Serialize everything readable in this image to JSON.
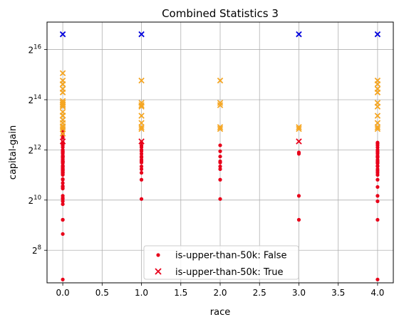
{
  "chart_data": {
    "type": "scatter",
    "title": "Combined Statistics 3",
    "xlabel": "race",
    "ylabel": "capital-gain",
    "y_scale": "log2",
    "grid": true,
    "legend_placement": "lower center",
    "xlim": [
      -0.2,
      4.2
    ],
    "ylim": [
      104,
      140000
    ],
    "x_ticks": [
      0.0,
      0.5,
      1.0,
      1.5,
      2.0,
      2.5,
      3.0,
      3.5,
      4.0
    ],
    "x_tick_labels": [
      "0.0",
      "0.5",
      "1.0",
      "1.5",
      "2.0",
      "2.5",
      "3.0",
      "3.5",
      "4.0"
    ],
    "y_ticks": [
      256,
      1024,
      4096,
      16384,
      65536
    ],
    "y_tick_labels": [
      {
        "base": "2",
        "exp": "8"
      },
      {
        "base": "2",
        "exp": "10"
      },
      {
        "base": "2",
        "exp": "12"
      },
      {
        "base": "2",
        "exp": "14"
      },
      {
        "base": "2",
        "exp": "16"
      }
    ],
    "series": [
      {
        "name": "is-upper-than-50k: False",
        "marker": "circle",
        "points": [
          {
            "x": 0,
            "y": 114
          },
          {
            "x": 0,
            "y": 401
          },
          {
            "x": 0,
            "y": 594
          },
          {
            "x": 0,
            "y": 594
          },
          {
            "x": 0,
            "y": 914
          },
          {
            "x": 0,
            "y": 991
          },
          {
            "x": 0,
            "y": 1055
          },
          {
            "x": 0,
            "y": 1086
          },
          {
            "x": 0,
            "y": 1151
          },
          {
            "x": 0,
            "y": 1409
          },
          {
            "x": 0,
            "y": 1471
          },
          {
            "x": 0,
            "y": 1506
          },
          {
            "x": 0,
            "y": 1639
          },
          {
            "x": 0,
            "y": 1797
          },
          {
            "x": 0,
            "y": 1831
          },
          {
            "x": 0,
            "y": 2050
          },
          {
            "x": 0,
            "y": 2105
          },
          {
            "x": 0,
            "y": 2174
          },
          {
            "x": 0,
            "y": 2176
          },
          {
            "x": 0,
            "y": 2202
          },
          {
            "x": 0,
            "y": 2228
          },
          {
            "x": 0,
            "y": 2290
          },
          {
            "x": 0,
            "y": 2329
          },
          {
            "x": 0,
            "y": 2346
          },
          {
            "x": 0,
            "y": 2354
          },
          {
            "x": 0,
            "y": 2407
          },
          {
            "x": 0,
            "y": 2414
          },
          {
            "x": 0,
            "y": 2463
          },
          {
            "x": 0,
            "y": 2538
          },
          {
            "x": 0,
            "y": 2580
          },
          {
            "x": 0,
            "y": 2597
          },
          {
            "x": 0,
            "y": 2635
          },
          {
            "x": 0,
            "y": 2653
          },
          {
            "x": 0,
            "y": 2829
          },
          {
            "x": 0,
            "y": 2885
          },
          {
            "x": 0,
            "y": 2907
          },
          {
            "x": 0,
            "y": 2936
          },
          {
            "x": 0,
            "y": 2961
          },
          {
            "x": 0,
            "y": 2964
          },
          {
            "x": 0,
            "y": 2977
          },
          {
            "x": 0,
            "y": 2993
          },
          {
            "x": 0,
            "y": 3103
          },
          {
            "x": 0,
            "y": 3137
          },
          {
            "x": 0,
            "y": 3273
          },
          {
            "x": 0,
            "y": 3325
          },
          {
            "x": 0,
            "y": 3411
          },
          {
            "x": 0,
            "y": 3418
          },
          {
            "x": 0,
            "y": 3432
          },
          {
            "x": 0,
            "y": 3456
          },
          {
            "x": 0,
            "y": 3464
          },
          {
            "x": 0,
            "y": 3471
          },
          {
            "x": 0,
            "y": 3674
          },
          {
            "x": 0,
            "y": 3781
          },
          {
            "x": 0,
            "y": 3818
          },
          {
            "x": 0,
            "y": 3887
          },
          {
            "x": 0,
            "y": 3908
          },
          {
            "x": 0,
            "y": 3942
          },
          {
            "x": 0,
            "y": 4064
          },
          {
            "x": 0,
            "y": 4101
          },
          {
            "x": 0,
            "y": 4416
          },
          {
            "x": 0,
            "y": 4650
          },
          {
            "x": 0,
            "y": 4865
          },
          {
            "x": 0,
            "y": 4931
          },
          {
            "x": 0,
            "y": 4934
          },
          {
            "x": 0,
            "y": 5013
          },
          {
            "x": 0,
            "y": 5060
          },
          {
            "x": 0,
            "y": 5721
          },
          {
            "x": 0,
            "y": 6097
          },
          {
            "x": 0,
            "y": 6360
          },
          {
            "x": 0,
            "y": 6849
          },
          {
            "x": 0,
            "y": 7443
          },
          {
            "x": 1,
            "y": 1055
          },
          {
            "x": 1,
            "y": 1797
          },
          {
            "x": 1,
            "y": 2176
          },
          {
            "x": 1,
            "y": 2407
          },
          {
            "x": 1,
            "y": 2597
          },
          {
            "x": 1,
            "y": 2885
          },
          {
            "x": 1,
            "y": 2993
          },
          {
            "x": 1,
            "y": 3103
          },
          {
            "x": 1,
            "y": 3325
          },
          {
            "x": 1,
            "y": 3411
          },
          {
            "x": 1,
            "y": 3674
          },
          {
            "x": 1,
            "y": 3942
          },
          {
            "x": 1,
            "y": 4101
          },
          {
            "x": 1,
            "y": 4416
          },
          {
            "x": 1,
            "y": 4650
          },
          {
            "x": 1,
            "y": 5013
          },
          {
            "x": 2,
            "y": 1055
          },
          {
            "x": 2,
            "y": 1797
          },
          {
            "x": 2,
            "y": 2407
          },
          {
            "x": 2,
            "y": 2597
          },
          {
            "x": 2,
            "y": 2885
          },
          {
            "x": 2,
            "y": 2993
          },
          {
            "x": 2,
            "y": 3411
          },
          {
            "x": 2,
            "y": 3942
          },
          {
            "x": 2,
            "y": 4650
          },
          {
            "x": 3,
            "y": 594
          },
          {
            "x": 3,
            "y": 1151
          },
          {
            "x": 3,
            "y": 3674
          },
          {
            "x": 3,
            "y": 3818
          },
          {
            "x": 4,
            "y": 114
          },
          {
            "x": 4,
            "y": 594
          },
          {
            "x": 4,
            "y": 991
          },
          {
            "x": 4,
            "y": 1151
          },
          {
            "x": 4,
            "y": 1471
          },
          {
            "x": 4,
            "y": 1797
          },
          {
            "x": 4,
            "y": 2050
          },
          {
            "x": 4,
            "y": 2176
          },
          {
            "x": 4,
            "y": 2290
          },
          {
            "x": 4,
            "y": 2407
          },
          {
            "x": 4,
            "y": 2597
          },
          {
            "x": 4,
            "y": 2635
          },
          {
            "x": 4,
            "y": 2829
          },
          {
            "x": 4,
            "y": 2885
          },
          {
            "x": 4,
            "y": 2993
          },
          {
            "x": 4,
            "y": 3103
          },
          {
            "x": 4,
            "y": 3325
          },
          {
            "x": 4,
            "y": 3411
          },
          {
            "x": 4,
            "y": 3464
          },
          {
            "x": 4,
            "y": 3674
          },
          {
            "x": 4,
            "y": 3818
          },
          {
            "x": 4,
            "y": 3942
          },
          {
            "x": 4,
            "y": 4101
          },
          {
            "x": 4,
            "y": 4386
          },
          {
            "x": 4,
            "y": 4650
          },
          {
            "x": 4,
            "y": 4865
          },
          {
            "x": 4,
            "y": 5013
          }
        ]
      },
      {
        "name": "is-upper-than-50k: True",
        "marker": "x",
        "points": [
          {
            "x": 0,
            "y": 7298
          },
          {
            "x": 0,
            "y": 7688
          },
          {
            "x": 0,
            "y": 7896
          },
          {
            "x": 0,
            "y": 8614
          },
          {
            "x": 0,
            "y": 9386
          },
          {
            "x": 0,
            "y": 10520
          },
          {
            "x": 0,
            "y": 10605
          },
          {
            "x": 0,
            "y": 11678
          },
          {
            "x": 0,
            "y": 13550
          },
          {
            "x": 0,
            "y": 14084
          },
          {
            "x": 0,
            "y": 14344
          },
          {
            "x": 0,
            "y": 15020
          },
          {
            "x": 0,
            "y": 15024
          },
          {
            "x": 0,
            "y": 15831
          },
          {
            "x": 0,
            "y": 20051
          },
          {
            "x": 0,
            "y": 22040
          },
          {
            "x": 0,
            "y": 25124
          },
          {
            "x": 0,
            "y": 25236
          },
          {
            "x": 0,
            "y": 27828
          },
          {
            "x": 0,
            "y": 34095
          },
          {
            "x": 0,
            "y": 99999
          },
          {
            "x": 0,
            "y": 5178
          },
          {
            "x": 0,
            "y": 6418
          },
          {
            "x": 1,
            "y": 5178
          },
          {
            "x": 1,
            "y": 7298
          },
          {
            "x": 1,
            "y": 7688
          },
          {
            "x": 1,
            "y": 8614
          },
          {
            "x": 1,
            "y": 10520
          },
          {
            "x": 1,
            "y": 13550
          },
          {
            "x": 1,
            "y": 14084
          },
          {
            "x": 1,
            "y": 15024
          },
          {
            "x": 1,
            "y": 27828
          },
          {
            "x": 1,
            "y": 99999
          },
          {
            "x": 2,
            "y": 7298
          },
          {
            "x": 2,
            "y": 7688
          },
          {
            "x": 2,
            "y": 14084
          },
          {
            "x": 2,
            "y": 15024
          },
          {
            "x": 2,
            "y": 27828
          },
          {
            "x": 3,
            "y": 5178
          },
          {
            "x": 3,
            "y": 7298
          },
          {
            "x": 3,
            "y": 7688
          },
          {
            "x": 3,
            "y": 99999
          },
          {
            "x": 4,
            "y": 7298
          },
          {
            "x": 4,
            "y": 7688
          },
          {
            "x": 4,
            "y": 8614
          },
          {
            "x": 4,
            "y": 10520
          },
          {
            "x": 4,
            "y": 13550
          },
          {
            "x": 4,
            "y": 15024
          },
          {
            "x": 4,
            "y": 20051
          },
          {
            "x": 4,
            "y": 22040
          },
          {
            "x": 4,
            "y": 25236
          },
          {
            "x": 4,
            "y": 27828
          },
          {
            "x": 4,
            "y": 99999
          }
        ]
      }
    ],
    "colors": {
      "false_marker": "#e8001a",
      "true_low": "#e8001a",
      "true_mid": "#f5a623",
      "true_high": "#0000dd",
      "grid": "#b0b0b0"
    }
  }
}
